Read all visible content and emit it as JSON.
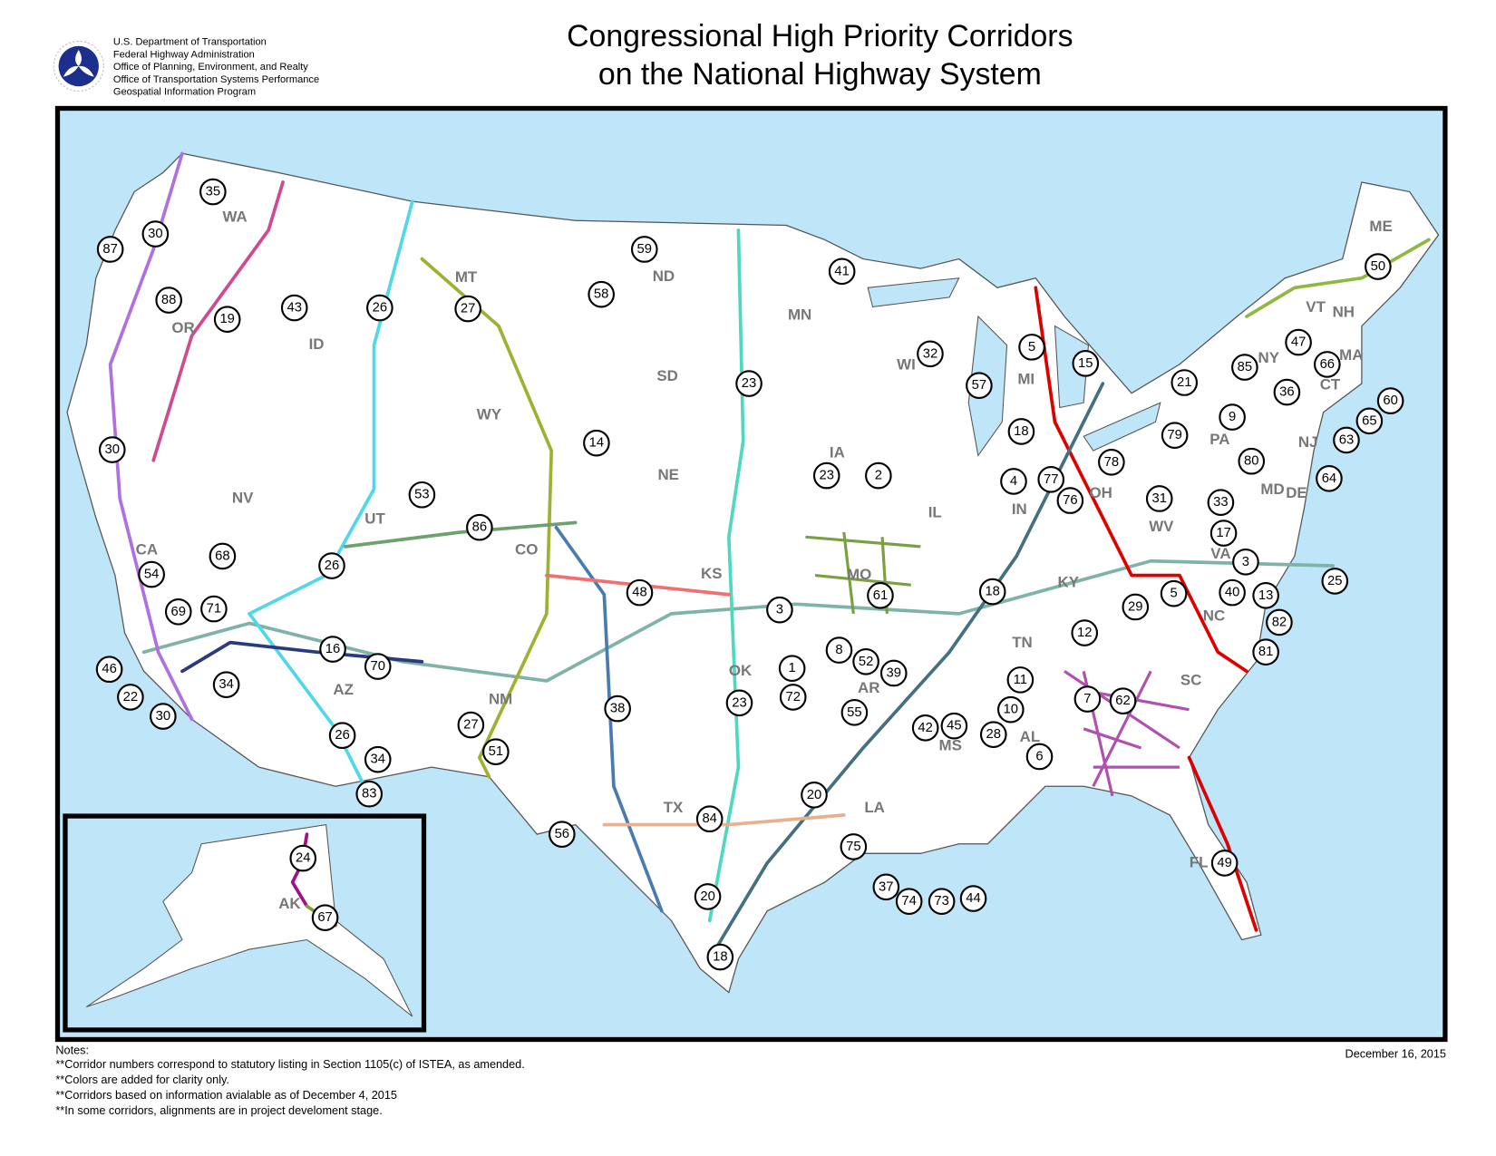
{
  "header": {
    "agency": [
      "U.S. Department of Transportation",
      "Federal Highway Administration",
      "Office of Planning, Environment, and Realty",
      "Office of Transportation Systems Performance",
      "Geospatial Information Program"
    ],
    "title": [
      "Congressional High Priority Corridors",
      "on the National Highway System"
    ]
  },
  "map": {
    "states": [
      "WA",
      "OR",
      "ID",
      "MT",
      "ND",
      "MN",
      "WI",
      "MI",
      "NY",
      "VT",
      "NH",
      "ME",
      "MA",
      "CT",
      "NJ",
      "PA",
      "DE",
      "MD",
      "OH",
      "WV",
      "VA",
      "IN",
      "IL",
      "IA",
      "NE",
      "SD",
      "WY",
      "NV",
      "UT",
      "CO",
      "KS",
      "MO",
      "KY",
      "NC",
      "TN",
      "SC",
      "AR",
      "OK",
      "NM",
      "AZ",
      "CA",
      "TX",
      "MS",
      "AL",
      "LA",
      "FL",
      "AK"
    ],
    "corridors": [
      "35",
      "30",
      "87",
      "88",
      "19",
      "43",
      "26",
      "27",
      "58",
      "59",
      "41",
      "5",
      "15",
      "32",
      "57",
      "23",
      "14",
      "30",
      "18",
      "21",
      "85",
      "47",
      "66",
      "36",
      "60",
      "65",
      "63",
      "9",
      "79",
      "78",
      "80",
      "64",
      "50",
      "2",
      "23",
      "4",
      "77",
      "76",
      "31",
      "33",
      "17",
      "3",
      "25",
      "53",
      "86",
      "68",
      "54",
      "26",
      "48",
      "3",
      "61",
      "18",
      "5",
      "40",
      "13",
      "29",
      "12",
      "82",
      "81",
      "69",
      "71",
      "46",
      "22",
      "30",
      "34",
      "16",
      "70",
      "8",
      "1",
      "52",
      "39",
      "72",
      "55",
      "23",
      "38",
      "27",
      "51",
      "26",
      "34",
      "83",
      "11",
      "7",
      "62",
      "10",
      "42",
      "45",
      "28",
      "6",
      "20",
      "84",
      "56",
      "75",
      "49",
      "37",
      "74",
      "73",
      "44",
      "20",
      "18",
      "24",
      "67"
    ]
  },
  "notes": [
    "Notes:",
    "**Corridor numbers correspond to statutory listing in Section 1105(c) of ISTEA, as amended.",
    "**Colors are added for clarity only.",
    "**Corridors based on information avialable as of December 4, 2015",
    "**In some corridors, alignments are in project develoment stage."
  ],
  "date": "December 16, 2015"
}
